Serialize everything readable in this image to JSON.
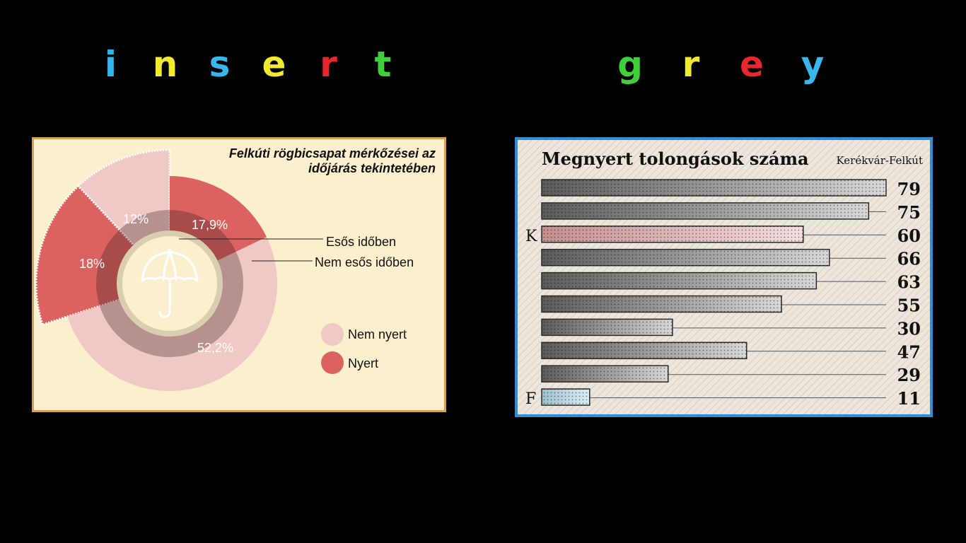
{
  "header": {
    "left_letters": [
      "i",
      "n",
      "s",
      "e",
      "r",
      "t"
    ],
    "left_colors": [
      "#2fb7ea",
      "#f2ea2c",
      "#36b8ec",
      "#f2ea2c",
      "#e7262f",
      "#3fcf3a"
    ],
    "right_letters": [
      "g",
      "r",
      "e",
      "y"
    ],
    "right_colors": [
      "#3fcf3a",
      "#f2ea2c",
      "#e7262f",
      "#36b8ec"
    ]
  },
  "chart_data": [
    {
      "type": "pie",
      "title": "Felkúti rögbicsapat mérkőzései az időjárás tekintetében",
      "groups": [
        {
          "name": "Esős időben",
          "segments": [
            {
              "label": "Nem nyert",
              "value": 12
            },
            {
              "label": "Nyert",
              "value": 18
            }
          ]
        },
        {
          "name": "Nem esős időben",
          "segments": [
            {
              "label": "Nyert",
              "value": 17.9
            },
            {
              "label": "Nem nyert",
              "value": 52.2
            }
          ]
        }
      ],
      "value_labels": {
        "esos_nem_nyert": "12%",
        "esos_nyert": "18%",
        "nem_esos_nyert": "17,9%",
        "nem_esos_nem_nyert": "52,2%"
      },
      "legend": [
        {
          "label": "Nem nyert",
          "color": "#f0c8c6"
        },
        {
          "label": "Nyert",
          "color": "#dc6260"
        }
      ],
      "icon": "umbrella-icon"
    },
    {
      "type": "bar",
      "title": "Megnyert tolongások száma",
      "subtitle": "Kerékvár-Felkút",
      "values": [
        79,
        75,
        60,
        66,
        63,
        55,
        30,
        47,
        29,
        11
      ],
      "side_labels": {
        "2": "K",
        "9": "F"
      },
      "highlight": {
        "2": "pink",
        "9": "blue"
      },
      "xlim": [
        0,
        79
      ]
    }
  ]
}
